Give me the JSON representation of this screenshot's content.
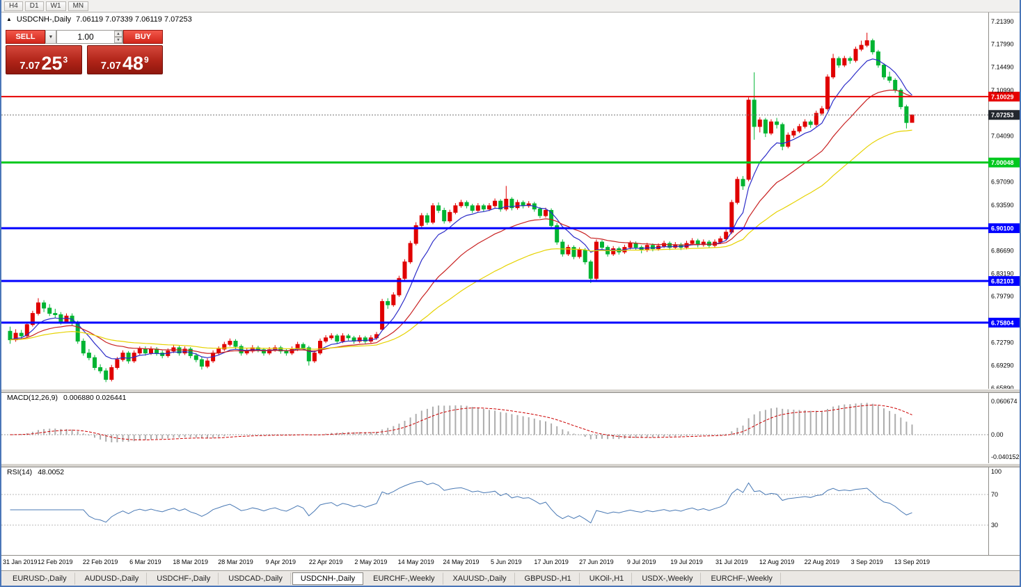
{
  "toolbar": {
    "timeframes": [
      "H4",
      "D1",
      "W1",
      "MN"
    ]
  },
  "chart_header": {
    "expand_icon": "▲",
    "symbol": "USDCNH-,Daily",
    "ohlc": "7.06119 7.07339 7.06119 7.07253"
  },
  "trade_panel": {
    "sell_label": "SELL",
    "buy_label": "BUY",
    "volume": "1.00",
    "dropdown_icon": "▼",
    "spin_up_icon": "▲",
    "spin_down_icon": "▼",
    "sell_price": {
      "big": "7.07",
      "pips": "25",
      "sup": "3"
    },
    "buy_price": {
      "big": "7.07",
      "pips": "48",
      "sup": "9"
    }
  },
  "indicators": {
    "macd": {
      "label": "MACD(12,26,9)",
      "values": "0.006880 0.026441",
      "axis_labels": [
        "0.060674",
        "0.00",
        "-0.040152"
      ],
      "axis_values": [
        0.060674,
        0,
        -0.040152
      ]
    },
    "rsi": {
      "label": "RSI(14)",
      "values": "48.0052",
      "axis_labels": [
        "100",
        "70",
        "30"
      ],
      "axis_values": [
        100,
        70,
        30
      ],
      "level_lines": [
        70,
        30
      ]
    }
  },
  "window_tabs": [
    {
      "label": "EURUSD-,Daily",
      "active": false
    },
    {
      "label": "AUDUSD-,Daily",
      "active": false
    },
    {
      "label": "USDCHF-,Daily",
      "active": false
    },
    {
      "label": "USDCAD-,Daily",
      "active": false
    },
    {
      "label": "USDCNH-,Daily",
      "active": true
    },
    {
      "label": "EURCHF-,Weekly",
      "active": false
    },
    {
      "label": "XAUUSD-,Daily",
      "active": false
    },
    {
      "label": "GBPUSD-,H1",
      "active": false
    },
    {
      "label": "UKOil-,H1",
      "active": false
    },
    {
      "label": "USDX-,Weekly",
      "active": false
    },
    {
      "label": "EURCHF-,Weekly",
      "active": false
    }
  ],
  "chart_data": {
    "type": "candlestick",
    "symbol": "USDCNH",
    "timeframe": "Daily",
    "ylim": [
      6.6589,
      7.2139
    ],
    "price_axis_labels": [
      "7.21390",
      "7.17990",
      "7.14490",
      "7.10990",
      "7.04090",
      "6.97090",
      "6.93590",
      "6.86690",
      "6.83190",
      "6.79790",
      "6.72790",
      "6.69290",
      "6.65890"
    ],
    "x_labels": [
      "31 Jan 2019",
      "12 Feb 2019",
      "22 Feb 2019",
      "6 Mar 2019",
      "18 Mar 2019",
      "28 Mar 2019",
      "9 Apr 2019",
      "22 Apr 2019",
      "2 May 2019",
      "14 May 2019",
      "24 May 2019",
      "5 Jun 2019",
      "17 Jun 2019",
      "27 Jun 2019",
      "9 Jul 2019",
      "19 Jul 2019",
      "31 Jul 2019",
      "12 Aug 2019",
      "22 Aug 2019",
      "3 Sep 2019",
      "13 Sep 2019"
    ],
    "x_label_step": 8,
    "hlines": [
      {
        "price": 7.10029,
        "label": "7.10029",
        "color": "#e60000",
        "width": 2
      },
      {
        "price": 7.00048,
        "label": "7.00048",
        "color": "#00c81e",
        "width": 3
      },
      {
        "price": 6.901,
        "label": "6.90100",
        "color": "#0000ff",
        "width": 3
      },
      {
        "price": 6.82103,
        "label": "6.82103",
        "color": "#0000ff",
        "width": 3
      },
      {
        "price": 6.75804,
        "label": "6.75804",
        "color": "#0000ff",
        "width": 3
      }
    ],
    "current_price": {
      "value": 7.07253,
      "label": "7.07253",
      "badge_bg": "#23272e"
    },
    "ma_overlays": [
      {
        "period": 8,
        "color": "#2c2cc8"
      },
      {
        "period": 21,
        "color": "#c82020"
      },
      {
        "period": 45,
        "color": "#e6d200"
      }
    ],
    "colors": {
      "bull": "#e00000",
      "bear": "#00b432",
      "histogram": "#adadad",
      "macd_signal": "#cc0000",
      "rsi_line": "#4878b4"
    },
    "candles": [
      [
        6.745,
        6.752,
        6.726,
        6.732
      ],
      [
        6.732,
        6.748,
        6.729,
        6.742
      ],
      [
        6.742,
        6.747,
        6.733,
        6.738
      ],
      [
        6.738,
        6.759,
        6.735,
        6.755
      ],
      [
        6.755,
        6.776,
        6.752,
        6.772
      ],
      [
        6.772,
        6.795,
        6.769,
        6.788
      ],
      [
        6.788,
        6.792,
        6.774,
        6.78
      ],
      [
        6.78,
        6.786,
        6.768,
        6.772
      ],
      [
        6.772,
        6.779,
        6.765,
        6.77
      ],
      [
        6.77,
        6.774,
        6.755,
        6.76
      ],
      [
        6.76,
        6.772,
        6.757,
        6.768
      ],
      [
        6.768,
        6.772,
        6.753,
        6.758
      ],
      [
        6.758,
        6.761,
        6.726,
        6.73
      ],
      [
        6.73,
        6.734,
        6.708,
        6.712
      ],
      [
        6.712,
        6.718,
        6.701,
        6.705
      ],
      [
        6.705,
        6.709,
        6.686,
        6.69
      ],
      [
        6.69,
        6.695,
        6.681,
        6.685
      ],
      [
        6.685,
        6.689,
        6.668,
        6.672
      ],
      [
        6.672,
        6.694,
        6.669,
        6.69
      ],
      [
        6.69,
        6.706,
        6.687,
        6.702
      ],
      [
        6.702,
        6.716,
        6.699,
        6.712
      ],
      [
        6.712,
        6.715,
        6.696,
        6.7
      ],
      [
        6.7,
        6.716,
        6.697,
        6.712
      ],
      [
        6.712,
        6.722,
        6.709,
        6.718
      ],
      [
        6.718,
        6.722,
        6.708,
        6.712
      ],
      [
        6.712,
        6.722,
        6.709,
        6.718
      ],
      [
        6.718,
        6.721,
        6.708,
        6.712
      ],
      [
        6.712,
        6.716,
        6.704,
        6.708
      ],
      [
        6.708,
        6.719,
        6.705,
        6.715
      ],
      [
        6.715,
        6.724,
        6.712,
        6.72
      ],
      [
        6.72,
        6.723,
        6.708,
        6.712
      ],
      [
        6.712,
        6.722,
        6.709,
        6.718
      ],
      [
        6.718,
        6.721,
        6.704,
        6.708
      ],
      [
        6.708,
        6.712,
        6.698,
        6.702
      ],
      [
        6.702,
        6.706,
        6.687,
        6.692
      ],
      [
        6.692,
        6.704,
        6.689,
        6.7
      ],
      [
        6.7,
        6.716,
        6.697,
        6.712
      ],
      [
        6.712,
        6.722,
        6.709,
        6.718
      ],
      [
        6.718,
        6.729,
        6.715,
        6.725
      ],
      [
        6.725,
        6.734,
        6.722,
        6.73
      ],
      [
        6.73,
        6.733,
        6.718,
        6.722
      ],
      [
        6.722,
        6.725,
        6.708,
        6.712
      ],
      [
        6.712,
        6.719,
        6.709,
        6.715
      ],
      [
        6.715,
        6.724,
        6.712,
        6.72
      ],
      [
        6.72,
        6.723,
        6.713,
        6.717
      ],
      [
        6.717,
        6.72,
        6.708,
        6.712
      ],
      [
        6.712,
        6.721,
        6.709,
        6.717
      ],
      [
        6.717,
        6.724,
        6.714,
        6.72
      ],
      [
        6.72,
        6.723,
        6.711,
        6.715
      ],
      [
        6.715,
        6.718,
        6.708,
        6.712
      ],
      [
        6.712,
        6.722,
        6.709,
        6.718
      ],
      [
        6.718,
        6.729,
        6.715,
        6.725
      ],
      [
        6.725,
        6.728,
        6.716,
        6.72
      ],
      [
        6.72,
        6.723,
        6.693,
        6.7
      ],
      [
        6.7,
        6.716,
        6.697,
        6.712
      ],
      [
        6.712,
        6.734,
        6.709,
        6.73
      ],
      [
        6.73,
        6.739,
        6.727,
        6.735
      ],
      [
        6.735,
        6.742,
        6.732,
        6.738
      ],
      [
        6.738,
        6.741,
        6.726,
        6.73
      ],
      [
        6.73,
        6.742,
        6.727,
        6.738
      ],
      [
        6.738,
        6.741,
        6.731,
        6.735
      ],
      [
        6.735,
        6.738,
        6.726,
        6.73
      ],
      [
        6.73,
        6.739,
        6.727,
        6.735
      ],
      [
        6.735,
        6.738,
        6.726,
        6.73
      ],
      [
        6.73,
        6.739,
        6.727,
        6.735
      ],
      [
        6.735,
        6.744,
        6.732,
        6.74
      ],
      [
        6.748,
        6.794,
        6.746,
        6.79
      ],
      [
        6.79,
        6.795,
        6.779,
        6.785
      ],
      [
        6.785,
        6.804,
        6.782,
        6.8
      ],
      [
        6.8,
        6.829,
        6.797,
        6.825
      ],
      [
        6.825,
        6.854,
        6.822,
        6.85
      ],
      [
        6.85,
        6.882,
        6.847,
        6.878
      ],
      [
        6.878,
        6.91,
        6.875,
        6.905
      ],
      [
        6.905,
        6.924,
        6.901,
        6.92
      ],
      [
        6.92,
        6.924,
        6.906,
        6.91
      ],
      [
        6.91,
        6.939,
        6.907,
        6.935
      ],
      [
        6.935,
        6.94,
        6.924,
        6.928
      ],
      [
        6.928,
        6.932,
        6.908,
        6.912
      ],
      [
        6.912,
        6.929,
        6.909,
        6.925
      ],
      [
        6.925,
        6.939,
        6.922,
        6.935
      ],
      [
        6.935,
        6.944,
        6.932,
        6.94
      ],
      [
        6.94,
        6.943,
        6.931,
        6.935
      ],
      [
        6.935,
        6.938,
        6.924,
        6.928
      ],
      [
        6.928,
        6.939,
        6.925,
        6.935
      ],
      [
        6.935,
        6.938,
        6.926,
        6.93
      ],
      [
        6.93,
        6.939,
        6.927,
        6.935
      ],
      [
        6.935,
        6.946,
        6.932,
        6.942
      ],
      [
        6.942,
        6.945,
        6.926,
        6.93
      ],
      [
        6.93,
        6.965,
        6.927,
        6.945
      ],
      [
        6.945,
        6.948,
        6.928,
        6.932
      ],
      [
        6.932,
        6.944,
        6.929,
        6.94
      ],
      [
        6.94,
        6.943,
        6.931,
        6.935
      ],
      [
        6.935,
        6.942,
        6.932,
        6.938
      ],
      [
        6.938,
        6.941,
        6.926,
        6.93
      ],
      [
        6.93,
        6.933,
        6.916,
        6.92
      ],
      [
        6.92,
        6.932,
        6.917,
        6.928
      ],
      [
        6.928,
        6.931,
        6.901,
        6.905
      ],
      [
        6.905,
        6.909,
        6.876,
        6.88
      ],
      [
        6.88,
        6.884,
        6.858,
        6.862
      ],
      [
        6.862,
        6.876,
        6.859,
        6.872
      ],
      [
        6.872,
        6.875,
        6.854,
        6.858
      ],
      [
        6.858,
        6.872,
        6.855,
        6.868
      ],
      [
        6.868,
        6.871,
        6.846,
        6.85
      ],
      [
        6.85,
        6.853,
        6.818,
        6.825
      ],
      [
        6.825,
        6.884,
        6.822,
        6.88
      ],
      [
        6.88,
        6.883,
        6.868,
        6.872
      ],
      [
        6.872,
        6.875,
        6.858,
        6.862
      ],
      [
        6.862,
        6.874,
        6.859,
        6.87
      ],
      [
        6.87,
        6.873,
        6.861,
        6.865
      ],
      [
        6.865,
        6.876,
        6.862,
        6.872
      ],
      [
        6.872,
        6.882,
        6.869,
        6.878
      ],
      [
        6.878,
        6.881,
        6.868,
        6.872
      ],
      [
        6.872,
        6.875,
        6.863,
        6.868
      ],
      [
        6.868,
        6.879,
        6.865,
        6.875
      ],
      [
        6.875,
        6.878,
        6.866,
        6.87
      ],
      [
        6.87,
        6.878,
        6.867,
        6.874
      ],
      [
        6.874,
        6.882,
        6.871,
        6.878
      ],
      [
        6.878,
        6.881,
        6.868,
        6.872
      ],
      [
        6.872,
        6.88,
        6.869,
        6.876
      ],
      [
        6.876,
        6.879,
        6.868,
        6.872
      ],
      [
        6.872,
        6.882,
        6.869,
        6.878
      ],
      [
        6.878,
        6.886,
        6.875,
        6.882
      ],
      [
        6.882,
        6.885,
        6.872,
        6.876
      ],
      [
        6.876,
        6.884,
        6.873,
        6.88
      ],
      [
        6.88,
        6.883,
        6.871,
        6.875
      ],
      [
        6.875,
        6.884,
        6.872,
        6.88
      ],
      [
        6.88,
        6.889,
        6.877,
        6.885
      ],
      [
        6.885,
        6.899,
        6.882,
        6.895
      ],
      [
        6.895,
        6.944,
        6.892,
        6.94
      ],
      [
        6.94,
        6.979,
        6.937,
        6.975
      ],
      [
        6.975,
        6.98,
        6.959,
        6.965
      ],
      [
        6.975,
        7.099,
        6.972,
        7.095
      ],
      [
        7.095,
        7.137,
        7.035,
        7.055
      ],
      [
        7.055,
        7.069,
        7.046,
        7.065
      ],
      [
        7.065,
        7.068,
        7.039,
        7.045
      ],
      [
        7.045,
        7.066,
        7.042,
        7.062
      ],
      [
        7.062,
        7.068,
        7.052,
        7.058
      ],
      [
        7.058,
        7.061,
        7.019,
        7.025
      ],
      [
        7.025,
        7.046,
        7.022,
        7.042
      ],
      [
        7.042,
        7.052,
        7.038,
        7.048
      ],
      [
        7.048,
        7.059,
        7.045,
        7.055
      ],
      [
        7.055,
        7.066,
        7.052,
        7.062
      ],
      [
        7.062,
        7.065,
        7.053,
        7.058
      ],
      [
        7.058,
        7.079,
        7.055,
        7.075
      ],
      [
        7.075,
        7.086,
        7.072,
        7.082
      ],
      [
        7.082,
        7.134,
        7.079,
        7.13
      ],
      [
        7.13,
        7.165,
        7.127,
        7.158
      ],
      [
        7.158,
        7.161,
        7.144,
        7.148
      ],
      [
        7.148,
        7.162,
        7.145,
        7.158
      ],
      [
        7.158,
        7.161,
        7.15,
        7.155
      ],
      [
        7.155,
        7.176,
        7.152,
        7.172
      ],
      [
        7.172,
        7.185,
        7.169,
        7.178
      ],
      [
        7.178,
        7.197,
        7.175,
        7.185
      ],
      [
        7.185,
        7.188,
        7.164,
        7.168
      ],
      [
        7.168,
        7.171,
        7.144,
        7.148
      ],
      [
        7.148,
        7.151,
        7.126,
        7.13
      ],
      [
        7.13,
        7.138,
        7.121,
        7.125
      ],
      [
        7.125,
        7.128,
        7.106,
        7.11
      ],
      [
        7.11,
        7.113,
        7.081,
        7.085
      ],
      [
        7.085,
        7.088,
        7.052,
        7.061
      ],
      [
        7.06119,
        7.07339,
        7.06119,
        7.07253
      ]
    ]
  }
}
